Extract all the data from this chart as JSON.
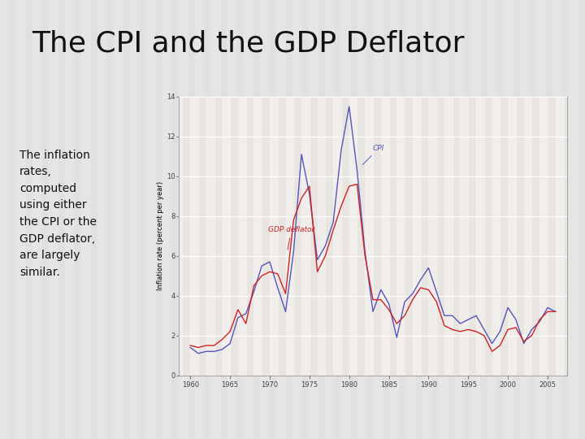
{
  "title": "The CPI and the GDP Deflator",
  "left_text": "The inflation\nrates,\ncomputed\nusing either\nthe CPI or the\nGDP deflator,\nare largely\nsimilar.",
  "ylabel": "Inflation rate (percent per year)",
  "bg_color": "#e0e0e0",
  "plot_bg_color": "#e8e4e0",
  "title_color": "#111111",
  "title_fontsize": 26,
  "body_fontsize": 10,
  "years": [
    1960,
    1961,
    1962,
    1963,
    1964,
    1965,
    1966,
    1967,
    1968,
    1969,
    1970,
    1971,
    1972,
    1973,
    1974,
    1975,
    1976,
    1977,
    1978,
    1979,
    1980,
    1981,
    1982,
    1983,
    1984,
    1985,
    1986,
    1987,
    1988,
    1989,
    1990,
    1991,
    1992,
    1993,
    1994,
    1995,
    1996,
    1997,
    1998,
    1999,
    2000,
    2001,
    2002,
    2003,
    2004,
    2005,
    2006
  ],
  "cpi": [
    1.4,
    1.1,
    1.2,
    1.2,
    1.3,
    1.6,
    2.9,
    3.1,
    4.2,
    5.5,
    5.7,
    4.4,
    3.2,
    6.2,
    11.1,
    9.1,
    5.8,
    6.5,
    7.7,
    11.3,
    13.5,
    10.3,
    6.2,
    3.2,
    4.3,
    3.6,
    1.9,
    3.7,
    4.1,
    4.8,
    5.4,
    4.2,
    3.0,
    3.0,
    2.6,
    2.8,
    3.0,
    2.3,
    1.6,
    2.2,
    3.4,
    2.8,
    1.6,
    2.3,
    2.7,
    3.4,
    3.2
  ],
  "gdp_deflator": [
    1.5,
    1.4,
    1.5,
    1.5,
    1.8,
    2.2,
    3.3,
    2.6,
    4.5,
    5.0,
    5.2,
    5.1,
    4.1,
    7.8,
    8.9,
    9.5,
    5.2,
    6.0,
    7.3,
    8.5,
    9.5,
    9.6,
    6.0,
    3.8,
    3.8,
    3.3,
    2.6,
    3.0,
    3.8,
    4.4,
    4.3,
    3.7,
    2.5,
    2.3,
    2.2,
    2.3,
    2.2,
    2.0,
    1.2,
    1.5,
    2.3,
    2.4,
    1.7,
    2.0,
    2.8,
    3.2,
    3.2
  ],
  "cpi_color": "#5555bb",
  "gdp_color": "#cc2222",
  "ylim": [
    0,
    14
  ],
  "yticks": [
    0,
    2,
    4,
    6,
    8,
    10,
    12,
    14
  ],
  "xtick_years": [
    1960,
    1965,
    1970,
    1975,
    1980,
    1985,
    1990,
    1995,
    2000,
    2005
  ],
  "top_bar_color": "#7a8fa8",
  "stripe_light": "#d4d0cc",
  "stripe_dark": "#c8c4c0"
}
